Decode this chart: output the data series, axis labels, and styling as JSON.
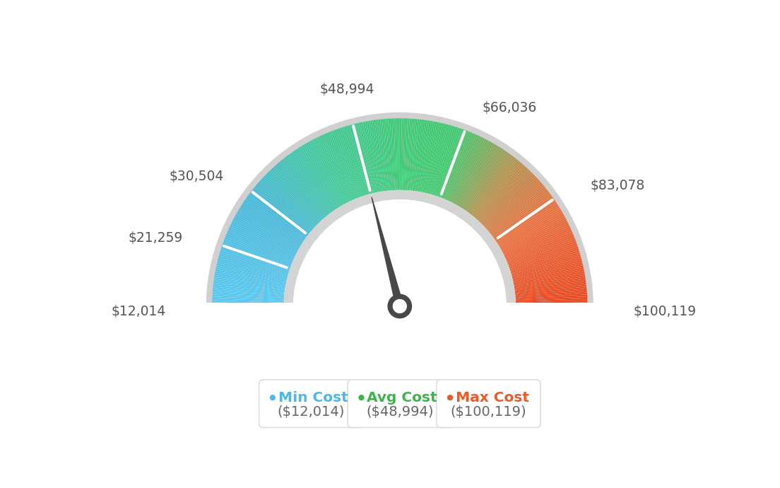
{
  "min_value": 12014,
  "avg_value": 48994,
  "max_value": 100119,
  "tick_values": [
    12014,
    21259,
    30504,
    48994,
    66036,
    83078,
    100119
  ],
  "tick_labels": [
    "$12,014",
    "$21,259",
    "$30,504",
    "$48,994",
    "$66,036",
    "$83,078",
    "$100,119"
  ],
  "legend": [
    {
      "label": "Min Cost",
      "value": "($12,014)",
      "color": "#4ab8e8"
    },
    {
      "label": "Avg Cost",
      "value": "($48,994)",
      "color": "#3ab54a"
    },
    {
      "label": "Max Cost",
      "value": "($100,119)",
      "color": "#f05828"
    }
  ],
  "needle_value": 48994,
  "bg_color": "#ffffff",
  "colors_gradient": [
    [
      0.0,
      "#5bc8f0"
    ],
    [
      0.2,
      "#4ab8d8"
    ],
    [
      0.35,
      "#42c89a"
    ],
    [
      0.5,
      "#42c878"
    ],
    [
      0.6,
      "#42c870"
    ],
    [
      0.72,
      "#b89050"
    ],
    [
      0.82,
      "#e87040"
    ],
    [
      1.0,
      "#e84820"
    ]
  ]
}
